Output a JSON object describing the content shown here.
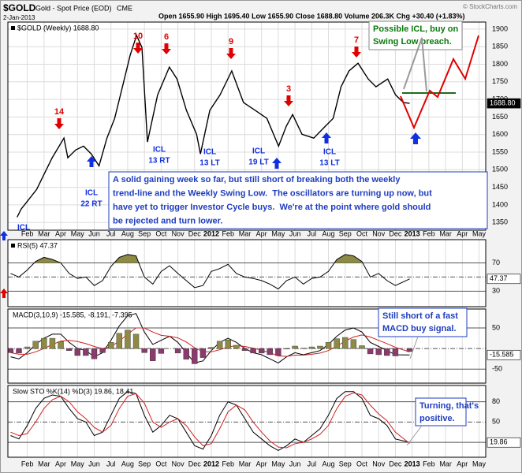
{
  "header": {
    "symbol": "$GOLD",
    "description": "Gold - Spot Price (EOD)",
    "exchange": "CME",
    "date": "2-Jan-2013",
    "quote": "Open 1655.90 High 1695.40 Low 1655.90 Close 1688.80 Volume 206.3K Chg +30.40 (+1.83%)",
    "credit": "© StockCharts.com"
  },
  "notes": {
    "icl_buy": [
      "Possible ICL, buy on",
      "Swing Low breach."
    ],
    "summary": [
      "A solid gaining week so far, but still short of breaking both the weekly",
      "trend-line and the Weekly Swing Low.  The oscillators are turning up now, but",
      "have yet to trigger Investor Cycle buys.  We're at the point where gold should",
      "be rejected and turn lower."
    ],
    "macd": [
      "Still short of a fast",
      "MACD buy signal."
    ],
    "stochastic": [
      "Turning, that's",
      "positive."
    ]
  },
  "chart_data": [
    {
      "type": "line",
      "grid": true,
      "xlim": [
        -0.16,
        28.4
      ],
      "ylim": [
        1328,
        1920
      ],
      "xticks": [
        {
          "value": 1,
          "label": "Feb"
        },
        {
          "value": 2,
          "label": "Mar"
        },
        {
          "value": 3,
          "label": "Apr"
        },
        {
          "value": 4,
          "label": "May"
        },
        {
          "value": 5,
          "label": "Jun"
        },
        {
          "value": 6,
          "label": "Jul"
        },
        {
          "value": 7,
          "label": "Aug"
        },
        {
          "value": 8,
          "label": "Sep"
        },
        {
          "value": 9,
          "label": "Oct"
        },
        {
          "value": 10,
          "label": "Nov"
        },
        {
          "value": 11,
          "label": "Dec"
        },
        {
          "value": 12,
          "label": "2012"
        },
        {
          "value": 13,
          "label": "Feb"
        },
        {
          "value": 14,
          "label": "Mar"
        },
        {
          "value": 15,
          "label": "Apr"
        },
        {
          "value": 16,
          "label": "May"
        },
        {
          "value": 17,
          "label": "Jun"
        },
        {
          "value": 18,
          "label": "Jul"
        },
        {
          "value": 19,
          "label": "Aug"
        },
        {
          "value": 20,
          "label": "Sep"
        },
        {
          "value": 21,
          "label": "Oct"
        },
        {
          "value": 22,
          "label": "Nov"
        },
        {
          "value": 23,
          "label": "Dec"
        },
        {
          "value": 24,
          "label": "2013"
        },
        {
          "value": 25,
          "label": "Feb"
        },
        {
          "value": 26,
          "label": "Mar"
        },
        {
          "value": 27,
          "label": "Apr"
        },
        {
          "value": 28,
          "label": "May"
        }
      ],
      "yticks": [
        1350,
        1400,
        1450,
        1500,
        1550,
        1600,
        1650,
        1700,
        1750,
        1800,
        1850,
        1900
      ],
      "x": [
        0.39,
        0.63,
        1.0,
        1.56,
        2.02,
        2.49,
        3.19,
        3.42,
        3.89,
        4.36,
        4.82,
        5.29,
        5.76,
        6.22,
        6.69,
        7.15,
        7.53,
        7.85,
        8.18,
        8.79,
        9.49,
        9.95,
        10.51,
        11.12,
        11.35,
        11.91,
        12.52,
        13.22,
        13.92,
        14.62,
        15.32,
        16.02,
        16.48,
        16.86,
        17.42,
        18.12,
        18.82,
        19.28,
        19.75,
        20.23,
        20.77,
        21.38,
        21.84,
        22.54,
        23.01,
        23.48,
        23.85
      ],
      "series": [
        {
          "name": "$GOLD (Weekly) 1688.80",
          "color": "#000000",
          "values": [
            1365,
            1388,
            1410,
            1444,
            1489,
            1534,
            1590,
            1534,
            1556,
            1567,
            1545,
            1511,
            1590,
            1646,
            1736,
            1826,
            1882,
            1848,
            1579,
            1713,
            1792,
            1758,
            1669,
            1601,
            1545,
            1669,
            1713,
            1781,
            1691,
            1669,
            1646,
            1567,
            1624,
            1657,
            1601,
            1590,
            1624,
            1646,
            1736,
            1781,
            1803,
            1758,
            1736,
            1758,
            1713,
            1691,
            1688.8
          ],
          "value_labels": [
            null,
            null,
            null,
            null,
            null,
            null,
            null,
            null,
            null,
            null,
            null,
            null,
            null,
            null,
            null,
            null,
            null,
            null,
            null,
            null,
            null,
            null,
            null,
            null,
            null,
            null,
            null,
            null,
            null,
            null,
            null,
            null,
            null,
            null,
            null,
            null,
            null,
            null,
            null,
            null,
            null,
            null,
            null,
            null,
            null,
            null,
            "1688.80"
          ]
        }
      ],
      "peak_labels": [
        "14",
        "10",
        "6",
        "9",
        "3",
        "7"
      ],
      "icl_labels": [
        [
          "ICL",
          "22 RT"
        ],
        [
          "ICL",
          "13 RT"
        ],
        [
          "ICL",
          "13 LT"
        ],
        [
          "ICL",
          "19 LT"
        ],
        [
          "ICL",
          "13 LT"
        ],
        [
          "ICL"
        ]
      ]
    },
    {
      "type": "line",
      "xlim": [
        -0.16,
        28.4
      ],
      "ylim": [
        8,
        103
      ],
      "yticks": [
        30,
        50,
        70
      ],
      "fill_above": 70,
      "fill_color": "#8c8a44",
      "x": [
        0,
        0.5,
        1,
        1.5,
        2,
        2.5,
        3,
        3.5,
        4,
        4.5,
        5,
        5.5,
        6,
        6.5,
        7,
        7.5,
        8,
        8.5,
        9,
        9.5,
        10,
        10.5,
        11,
        11.5,
        12,
        12.5,
        13,
        13.5,
        14,
        14.5,
        15,
        15.5,
        16,
        16.5,
        17,
        17.5,
        18,
        18.5,
        19,
        19.5,
        20,
        20.5,
        21,
        21.5,
        22,
        22.5,
        23,
        23.85
      ],
      "series": [
        {
          "name": "RSI(5) 47.37",
          "color": "#000000",
          "values": [
            55,
            50,
            60,
            72,
            78,
            75,
            70,
            55,
            48,
            50,
            38,
            45,
            65,
            78,
            82,
            80,
            50,
            40,
            58,
            66,
            55,
            45,
            35,
            38,
            58,
            62,
            68,
            55,
            50,
            48,
            45,
            40,
            33,
            45,
            50,
            40,
            48,
            50,
            58,
            75,
            82,
            80,
            72,
            50,
            55,
            45,
            38,
            47.37
          ]
        }
      ]
    },
    {
      "type": "macd",
      "title": "MACD(3,10,9) -15.585, -8.191, -7.395",
      "xlim": [
        -0.16,
        28.4
      ],
      "ylim": [
        -84,
        96
      ],
      "yticks": [
        -50,
        50
      ],
      "x": [
        0,
        0.5,
        1,
        1.5,
        2,
        2.5,
        3,
        3.5,
        4,
        4.5,
        5,
        5.5,
        6,
        6.5,
        7,
        7.5,
        8,
        8.5,
        9,
        9.5,
        10,
        10.5,
        11,
        11.5,
        12,
        12.5,
        13,
        13.5,
        14,
        14.5,
        15,
        15.5,
        16,
        16.5,
        17,
        17.5,
        18,
        18.5,
        19,
        19.5,
        20,
        20.5,
        21,
        21.5,
        22,
        22.5,
        23,
        23.85
      ],
      "series": [
        {
          "color": "#000000",
          "values": [
            -20,
            -25,
            -10,
            10,
            25,
            35,
            35,
            15,
            0,
            -5,
            -20,
            -10,
            20,
            55,
            80,
            85,
            40,
            10,
            20,
            30,
            15,
            -10,
            -35,
            -30,
            -5,
            15,
            25,
            15,
            0,
            -10,
            -15,
            -25,
            -35,
            -20,
            -10,
            -15,
            -10,
            -5,
            10,
            30,
            45,
            50,
            40,
            15,
            5,
            -5,
            -15,
            -15.585
          ]
        },
        {
          "color": "#d02020",
          "values": [
            -10,
            -14,
            -14,
            -8,
            0,
            10,
            18,
            20,
            17,
            12,
            5,
            0,
            5,
            18,
            35,
            50,
            50,
            40,
            32,
            30,
            26,
            16,
            2,
            -8,
            -8,
            -3,
            4,
            7,
            5,
            1,
            -4,
            -10,
            -18,
            -19,
            -16,
            -16,
            -14,
            -11,
            -5,
            6,
            18,
            28,
            33,
            28,
            20,
            12,
            3,
            -8.191
          ]
        },
        {
          "type": "bar",
          "up_color": "#8c8a44",
          "down_color": "#8a3a6c",
          "values": [
            -10,
            -11,
            4,
            18,
            25,
            25,
            17,
            -5,
            -17,
            -17,
            -25,
            -10,
            15,
            37,
            45,
            35,
            -10,
            -30,
            -12,
            0,
            -11,
            -26,
            -37,
            -22,
            3,
            18,
            21,
            8,
            -5,
            -11,
            -11,
            -15,
            -17,
            -1,
            6,
            1,
            4,
            6,
            15,
            24,
            27,
            22,
            7,
            -13,
            -15,
            -17,
            -18,
            -7.395
          ]
        }
      ]
    },
    {
      "type": "line",
      "title": "Slow STO %K(14) %D(3) 19.86, 18.41",
      "xlim": [
        -0.16,
        28.4
      ],
      "ylim": [
        -2,
        104
      ],
      "yticks": [
        20,
        50,
        80
      ],
      "x": [
        0,
        0.5,
        1,
        1.5,
        2,
        2.5,
        3,
        3.5,
        4,
        4.5,
        5,
        5.5,
        6,
        6.5,
        7,
        7.5,
        8,
        8.5,
        9,
        9.5,
        10,
        10.5,
        11,
        11.5,
        12,
        12.5,
        13,
        13.5,
        14,
        14.5,
        15,
        15.5,
        16,
        16.5,
        17,
        17.5,
        18,
        18.5,
        19,
        19.5,
        20,
        20.5,
        21,
        21.5,
        22,
        22.5,
        23,
        23.85
      ],
      "series": [
        {
          "color": "#000000",
          "values": [
            30,
            25,
            45,
            70,
            85,
            90,
            88,
            70,
            55,
            50,
            30,
            35,
            60,
            85,
            95,
            92,
            60,
            35,
            45,
            60,
            55,
            35,
            15,
            10,
            30,
            60,
            80,
            75,
            55,
            35,
            25,
            15,
            8,
            15,
            25,
            20,
            30,
            40,
            60,
            85,
            95,
            95,
            85,
            60,
            55,
            45,
            25,
            19.86
          ]
        },
        {
          "color": "#d02020",
          "values": [
            35,
            30,
            33,
            50,
            70,
            83,
            88,
            80,
            65,
            55,
            42,
            35,
            45,
            70,
            88,
            92,
            78,
            50,
            42,
            50,
            55,
            45,
            28,
            15,
            18,
            40,
            65,
            75,
            68,
            50,
            35,
            22,
            13,
            12,
            18,
            20,
            25,
            32,
            45,
            70,
            88,
            93,
            90,
            75,
            62,
            52,
            35,
            18.41
          ]
        }
      ]
    }
  ]
}
